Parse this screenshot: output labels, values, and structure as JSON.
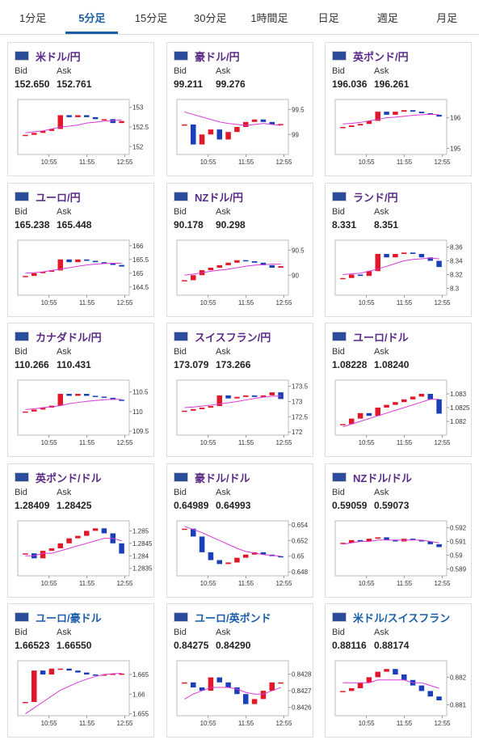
{
  "tabs": [
    "1分足",
    "5分足",
    "15分足",
    "30分足",
    "1時間足",
    "日足",
    "週足",
    "月足"
  ],
  "active_tab": 1,
  "bid_label": "Bid",
  "ask_label": "Ask",
  "xlabels": [
    "10:55",
    "11:55",
    "12:55"
  ],
  "up_color": "#e0182a",
  "down_color": "#1a3fb8",
  "ma_color": "#d63bd6",
  "cards": [
    {
      "title": "米ドル/円",
      "title_color": "#5a2a86",
      "bid": "152.650",
      "ask": "152.761",
      "ylim": [
        151.8,
        153.2
      ],
      "yticks": [
        152,
        152.5,
        153
      ],
      "close": [
        152.3,
        152.35,
        152.4,
        152.45,
        152.8,
        152.75,
        152.8,
        152.75,
        152.7,
        152.7,
        152.6,
        152.65
      ],
      "ma": [
        152.35,
        152.38,
        152.4,
        152.45,
        152.5,
        152.52,
        152.55,
        152.6,
        152.62,
        152.65,
        152.66,
        152.68
      ]
    },
    {
      "title": "豪ドル/円",
      "title_color": "#5a2a86",
      "bid": "99.211",
      "ask": "99.276",
      "ylim": [
        98.6,
        99.7
      ],
      "yticks": [
        99,
        99.5
      ],
      "close": [
        99.2,
        98.8,
        99.0,
        99.1,
        98.9,
        99.05,
        99.15,
        99.25,
        99.3,
        99.25,
        99.2,
        99.21
      ],
      "ma": [
        99.45,
        99.4,
        99.35,
        99.3,
        99.25,
        99.22,
        99.2,
        99.18,
        99.2,
        99.22,
        99.2,
        99.18
      ]
    },
    {
      "title": "英ポンド/円",
      "title_color": "#5a2a86",
      "bid": "196.036",
      "ask": "196.261",
      "ylim": [
        194.8,
        196.6
      ],
      "yticks": [
        195,
        196
      ],
      "close": [
        195.7,
        195.75,
        195.8,
        195.9,
        196.2,
        196.1,
        196.2,
        196.25,
        196.2,
        196.15,
        196.1,
        196.04
      ],
      "ma": [
        195.8,
        195.82,
        195.85,
        195.9,
        195.95,
        196,
        196.02,
        196.05,
        196.08,
        196.1,
        196.12,
        196.1
      ]
    },
    {
      "title": "ユーロ/円",
      "title_color": "#5a2a86",
      "bid": "165.238",
      "ask": "165.448",
      "ylim": [
        164.2,
        166.2
      ],
      "yticks": [
        164.5,
        165,
        165.5,
        166
      ],
      "close": [
        164.9,
        165,
        165.05,
        165.1,
        165.5,
        165.4,
        165.5,
        165.45,
        165.4,
        165.35,
        165.3,
        165.24
      ],
      "ma": [
        165,
        165.02,
        165.05,
        165.1,
        165.15,
        165.2,
        165.25,
        165.3,
        165.33,
        165.35,
        165.36,
        165.36
      ]
    },
    {
      "title": "NZドル/円",
      "title_color": "#5a2a86",
      "bid": "90.178",
      "ask": "90.298",
      "ylim": [
        89.6,
        90.7
      ],
      "yticks": [
        90,
        90.5
      ],
      "close": [
        89.9,
        90.0,
        90.1,
        90.15,
        90.2,
        90.25,
        90.3,
        90.28,
        90.25,
        90.2,
        90.15,
        90.18
      ],
      "ma": [
        90,
        90.02,
        90.05,
        90.08,
        90.1,
        90.12,
        90.15,
        90.18,
        90.2,
        90.21,
        90.22,
        90.22
      ]
    },
    {
      "title": "ランド/円",
      "title_color": "#5a2a86",
      "bid": "8.331",
      "ask": "8.351",
      "ylim": [
        8.29,
        8.37
      ],
      "yticks": [
        8.3,
        8.32,
        8.34,
        8.36
      ],
      "close": [
        8.315,
        8.32,
        8.318,
        8.325,
        8.35,
        8.345,
        8.35,
        8.352,
        8.35,
        8.345,
        8.34,
        8.331
      ],
      "ma": [
        8.32,
        8.321,
        8.322,
        8.325,
        8.328,
        8.332,
        8.336,
        8.34,
        8.342,
        8.343,
        8.344,
        8.343
      ]
    },
    {
      "title": "カナダドル/円",
      "title_color": "#5a2a86",
      "bid": "110.266",
      "ask": "110.431",
      "ylim": [
        109.4,
        110.8
      ],
      "yticks": [
        109.5,
        110,
        110.5
      ],
      "close": [
        110,
        110.05,
        110.1,
        110.15,
        110.45,
        110.4,
        110.45,
        110.4,
        110.38,
        110.35,
        110.3,
        110.27
      ],
      "ma": [
        110.05,
        110.07,
        110.1,
        110.12,
        110.15,
        110.2,
        110.23,
        110.26,
        110.28,
        110.3,
        110.31,
        110.31
      ]
    },
    {
      "title": "スイスフラン/円",
      "title_color": "#5a2a86",
      "bid": "173.079",
      "ask": "173.266",
      "ylim": [
        171.9,
        173.7
      ],
      "yticks": [
        172,
        172.5,
        173,
        173.5
      ],
      "close": [
        172.7,
        172.75,
        172.8,
        172.85,
        173.2,
        173.1,
        173.15,
        173.2,
        173.15,
        173.2,
        173.3,
        173.08
      ],
      "ma": [
        172.8,
        172.82,
        172.85,
        172.88,
        172.92,
        172.96,
        173,
        173.05,
        173.1,
        173.14,
        173.17,
        173.18
      ]
    },
    {
      "title": "ユーロ/ドル",
      "title_color": "#5a2a86",
      "bid": "1.08228",
      "ask": "1.08240",
      "ylim": [
        1.0815,
        1.0835
      ],
      "yticks": [
        1.082,
        1.0825,
        1.083
      ],
      "close": [
        1.0819,
        1.0821,
        1.0823,
        1.0822,
        1.0825,
        1.0826,
        1.0827,
        1.0828,
        1.0829,
        1.083,
        1.0828,
        1.08228
      ],
      "ma": [
        1.0818,
        1.0819,
        1.082,
        1.0821,
        1.0822,
        1.0823,
        1.0824,
        1.0825,
        1.0826,
        1.0827,
        1.0828,
        1.0828
      ]
    },
    {
      "title": "英ポンド/ドル",
      "title_color": "#5a2a86",
      "bid": "1.28409",
      "ask": "1.28425",
      "ylim": [
        1.2832,
        1.2854
      ],
      "yticks": [
        1.2835,
        1.284,
        1.2845,
        1.285
      ],
      "close": [
        1.2841,
        1.2839,
        1.2842,
        1.2843,
        1.2845,
        1.2847,
        1.2848,
        1.285,
        1.2851,
        1.2849,
        1.2845,
        1.28409
      ],
      "ma": [
        1.284,
        1.284,
        1.2841,
        1.2841,
        1.2842,
        1.2843,
        1.2844,
        1.2845,
        1.2846,
        1.2847,
        1.2847,
        1.2846
      ]
    },
    {
      "title": "豪ドル/ドル",
      "title_color": "#5a2a86",
      "bid": "0.64989",
      "ask": "0.64993",
      "ylim": [
        0.6475,
        0.6545
      ],
      "yticks": [
        0.648,
        0.65,
        0.652,
        0.654
      ],
      "close": [
        0.6535,
        0.6525,
        0.6505,
        0.6495,
        0.649,
        0.6492,
        0.6498,
        0.6502,
        0.6505,
        0.6502,
        0.65,
        0.64989
      ],
      "ma": [
        0.6538,
        0.6534,
        0.653,
        0.6525,
        0.652,
        0.6515,
        0.651,
        0.6506,
        0.6504,
        0.6502,
        0.6501,
        0.65
      ]
    },
    {
      "title": "NZドル/ドル",
      "title_color": "#5a2a86",
      "bid": "0.59059",
      "ask": "0.59073",
      "ylim": [
        0.5885,
        0.5925
      ],
      "yticks": [
        0.589,
        0.59,
        0.591,
        0.592
      ],
      "close": [
        0.5909,
        0.5911,
        0.591,
        0.5912,
        0.5913,
        0.5911,
        0.591,
        0.5912,
        0.5911,
        0.591,
        0.5908,
        0.59059
      ],
      "ma": [
        0.5908,
        0.5909,
        0.591,
        0.591,
        0.5911,
        0.5911,
        0.5911,
        0.5911,
        0.5911,
        0.5911,
        0.591,
        0.5909
      ]
    },
    {
      "title": "ユーロ/豪ドル",
      "title_color": "#1a5ea8",
      "bid": "1.66523",
      "ask": "1.66550",
      "ylim": [
        1.6545,
        1.6685
      ],
      "yticks": [
        1.655,
        1.66,
        1.665
      ],
      "close": [
        1.658,
        1.666,
        1.665,
        1.6665,
        1.6665,
        1.666,
        1.6655,
        1.665,
        1.6648,
        1.665,
        1.6652,
        1.66523
      ],
      "ma": [
        1.655,
        1.6565,
        1.658,
        1.6595,
        1.661,
        1.662,
        1.663,
        1.6638,
        1.6645,
        1.665,
        1.6652,
        1.6653
      ]
    },
    {
      "title": "ユーロ/英ポンド",
      "title_color": "#1a5ea8",
      "bid": "0.84275",
      "ask": "0.84290",
      "ylim": [
        0.84255,
        0.84288
      ],
      "yticks": [
        0.8426,
        0.8427,
        0.8428
      ],
      "close": [
        0.84275,
        0.84272,
        0.8427,
        0.84278,
        0.84275,
        0.84272,
        0.84268,
        0.84262,
        0.84265,
        0.8427,
        0.84275,
        0.84275
      ],
      "ma": [
        0.84265,
        0.84268,
        0.8427,
        0.84272,
        0.84272,
        0.84272,
        0.84271,
        0.84269,
        0.84268,
        0.84268,
        0.8427,
        0.84272
      ]
    },
    {
      "title": "米ドル/スイスフラン",
      "title_color": "#1a5ea8",
      "bid": "0.88116",
      "ask": "0.88174",
      "ylim": [
        0.8806,
        0.8826
      ],
      "yticks": [
        0.881,
        0.882
      ],
      "close": [
        0.8815,
        0.8816,
        0.8818,
        0.882,
        0.8822,
        0.8823,
        0.8821,
        0.8819,
        0.8817,
        0.8815,
        0.8813,
        0.88116
      ],
      "ma": [
        0.8818,
        0.8818,
        0.8818,
        0.8818,
        0.8819,
        0.8819,
        0.8819,
        0.8819,
        0.8818,
        0.8818,
        0.8817,
        0.8816
      ]
    }
  ]
}
